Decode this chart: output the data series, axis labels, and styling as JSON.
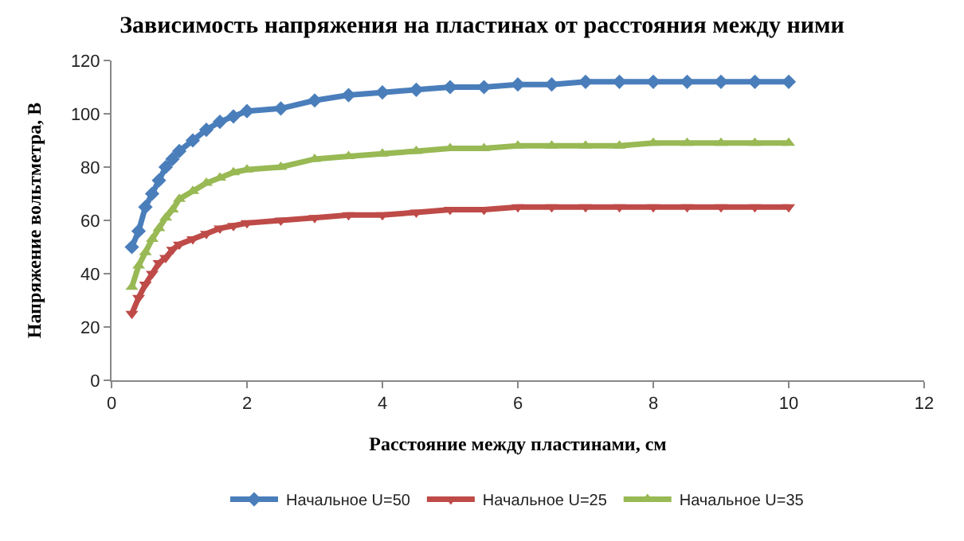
{
  "chart_data": {
    "type": "line",
    "title": "Зависимость напряжения на пластинах от расстояния между ними",
    "xlabel": "Расстояние между пластинами, см",
    "ylabel": "Напряжение вольтметра, В",
    "x": [
      0.3,
      0.4,
      0.5,
      0.6,
      0.7,
      0.8,
      0.9,
      1.0,
      1.2,
      1.4,
      1.6,
      1.8,
      2.0,
      2.5,
      3,
      3.5,
      4,
      4.5,
      5,
      5.5,
      6,
      6.5,
      7,
      7.5,
      8,
      8.5,
      9,
      9.5,
      10
    ],
    "series": [
      {
        "name": "Начальное U=50",
        "color": "#4a7ebb",
        "marker": "diamond",
        "values": [
          50,
          56,
          65,
          70,
          75,
          80,
          83,
          86,
          90,
          94,
          97,
          99,
          101,
          102,
          105,
          107,
          108,
          109,
          110,
          110,
          111,
          111,
          112,
          112,
          112,
          112,
          112,
          112,
          112
        ]
      },
      {
        "name": "Начальное U=25",
        "color": "#be4b48",
        "marker": "triangle-down",
        "values": [
          25,
          31,
          36,
          40,
          44,
          46,
          49,
          51,
          53,
          55,
          57,
          58,
          59,
          60,
          61,
          62,
          62,
          63,
          64,
          64,
          65,
          65,
          65,
          65,
          65,
          65,
          65,
          65,
          65
        ]
      },
      {
        "name": "Начальное U=35",
        "color": "#98b954",
        "marker": "triangle",
        "values": [
          35,
          43,
          48,
          53,
          57,
          61,
          64,
          68,
          71,
          74,
          76,
          78,
          79,
          80,
          83,
          84,
          85,
          86,
          87,
          87,
          88,
          88,
          88,
          88,
          89,
          89,
          89,
          89,
          89
        ]
      }
    ],
    "xlim": [
      0,
      12
    ],
    "xticks": [
      0,
      2,
      4,
      6,
      8,
      10,
      12
    ],
    "ylim": [
      0,
      120
    ],
    "yticks": [
      0,
      20,
      40,
      60,
      80,
      100,
      120
    ],
    "grid": false,
    "legend": "bottom",
    "line_style": "solid"
  }
}
